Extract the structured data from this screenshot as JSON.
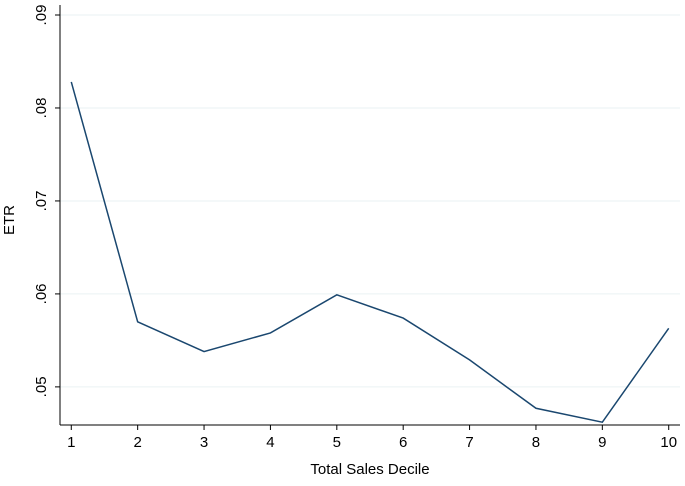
{
  "chart_data": {
    "type": "line",
    "x_label": "Total Sales Decile",
    "y_label": "ETR",
    "x": [
      1,
      2,
      3,
      4,
      5,
      6,
      7,
      8,
      9,
      10
    ],
    "series": [
      {
        "color": "#1a476f",
        "values": [
          0.0828,
          0.057,
          0.0538,
          0.0558,
          0.0599,
          0.0574,
          0.0529,
          0.0477,
          0.0462,
          0.0563
        ]
      }
    ],
    "xlim": [
      0.83,
      10.17
    ],
    "xticks": [
      1,
      2,
      3,
      4,
      5,
      6,
      7,
      8,
      9,
      10
    ],
    "ylim": [
      0.0459,
      0.09
    ],
    "yticks": [
      {
        "value": 0.05,
        "label": ".05"
      },
      {
        "value": 0.06,
        "label": ".06"
      },
      {
        "value": 0.07,
        "label": ".07"
      },
      {
        "value": 0.08,
        "label": ".08"
      },
      {
        "value": 0.09,
        "label": ".09"
      }
    ],
    "grid": true
  }
}
